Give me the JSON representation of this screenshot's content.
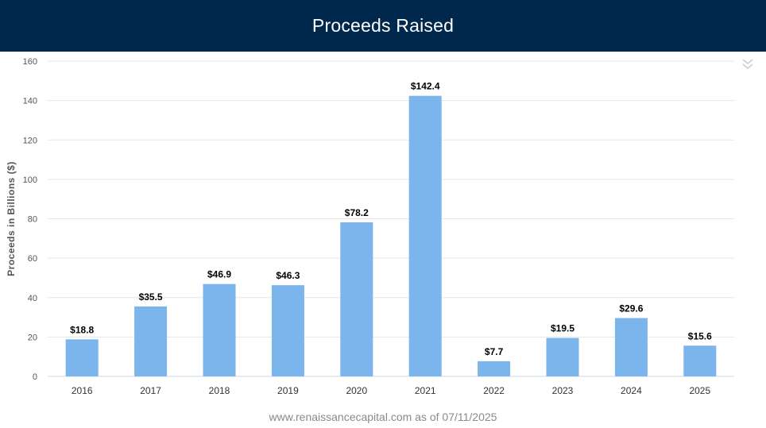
{
  "header": {
    "title": "Proceeds Raised"
  },
  "source_note": "www.renaissancecapital.com as of 07/11/2025",
  "colors": {
    "bar": "#7cb5ec",
    "header_bg": "#00274c",
    "grid": "#e6e6e6"
  },
  "menu": {
    "icon": "chevron-double-down-icon"
  },
  "chart_data": {
    "type": "bar",
    "title": "Proceeds Raised",
    "xlabel": "",
    "ylabel": "Proceeds in Billions ($)",
    "categories": [
      "2016",
      "2017",
      "2018",
      "2019",
      "2020",
      "2021",
      "2022",
      "2023",
      "2024",
      "2025"
    ],
    "values": [
      18.8,
      35.5,
      46.9,
      46.3,
      78.2,
      142.4,
      7.7,
      19.5,
      29.6,
      15.6
    ],
    "data_labels": [
      "$18.8",
      "$35.5",
      "$46.9",
      "$46.3",
      "$78.2",
      "$142.4",
      "$7.7",
      "$19.5",
      "$29.6",
      "$15.6"
    ],
    "ylim": [
      0,
      160
    ],
    "yticks": [
      0,
      20,
      40,
      60,
      80,
      100,
      120,
      140,
      160
    ],
    "grid": true,
    "legend": "none"
  }
}
